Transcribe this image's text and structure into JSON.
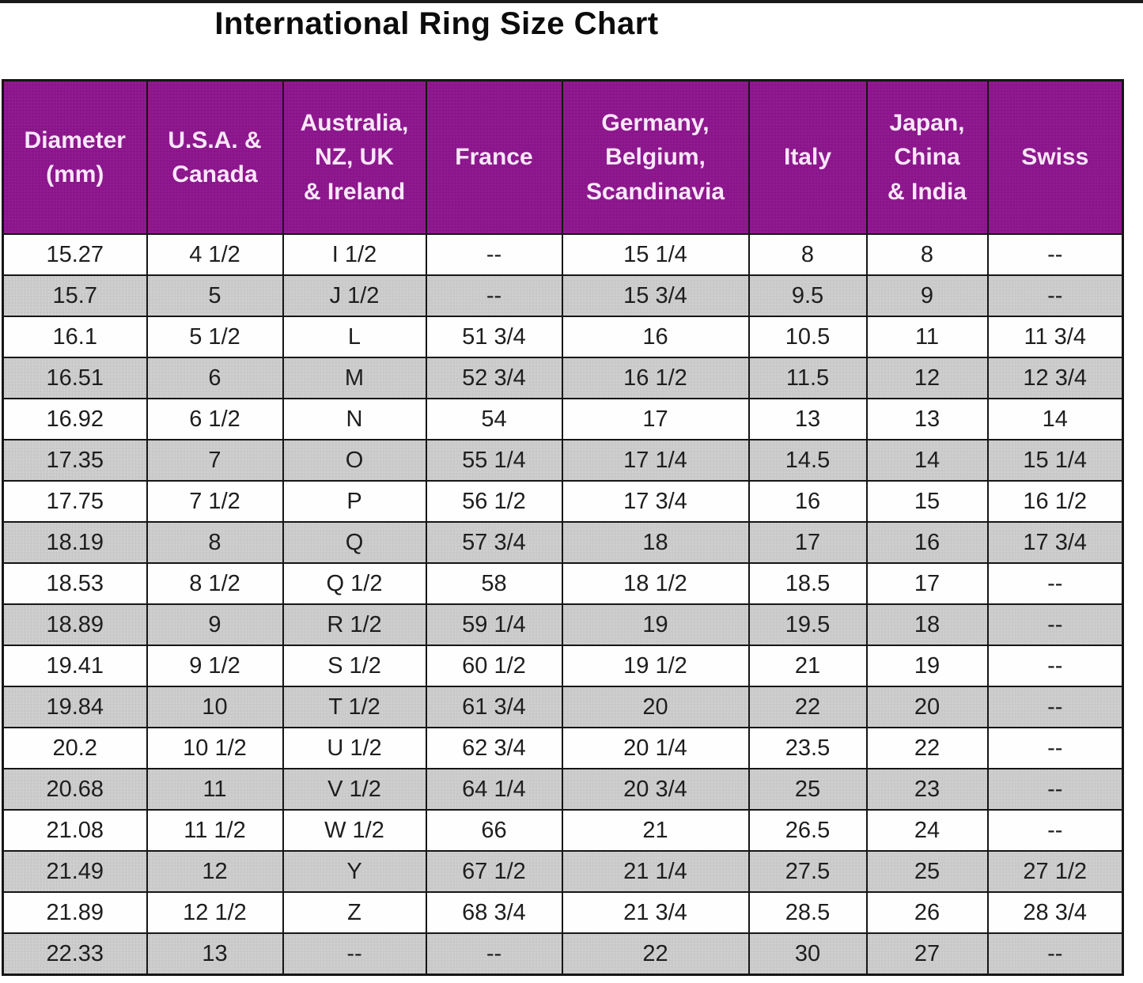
{
  "title": "International Ring Size Chart",
  "table": {
    "columns": [
      {
        "label": "Diameter\n(mm)"
      },
      {
        "label": "U.S.A. &\nCanada"
      },
      {
        "label": "Australia,\nNZ, UK\n& Ireland"
      },
      {
        "label": "France"
      },
      {
        "label": "Germany,\nBelgium,\nScandinavia"
      },
      {
        "label": "Italy"
      },
      {
        "label": "Japan,\nChina\n& India"
      },
      {
        "label": "Swiss"
      }
    ],
    "rows": [
      [
        "15.27",
        "4 1/2",
        "I 1/2",
        "--",
        "15 1/4",
        "8",
        "8",
        "--"
      ],
      [
        "15.7",
        "5",
        "J 1/2",
        "--",
        "15 3/4",
        "9.5",
        "9",
        "--"
      ],
      [
        "16.1",
        "5 1/2",
        "L",
        "51 3/4",
        "16",
        "10.5",
        "11",
        "11 3/4"
      ],
      [
        "16.51",
        "6",
        "M",
        "52 3/4",
        "16 1/2",
        "11.5",
        "12",
        "12 3/4"
      ],
      [
        "16.92",
        "6 1/2",
        "N",
        "54",
        "17",
        "13",
        "13",
        "14"
      ],
      [
        "17.35",
        "7",
        "O",
        "55 1/4",
        "17 1/4",
        "14.5",
        "14",
        "15 1/4"
      ],
      [
        "17.75",
        "7 1/2",
        "P",
        "56 1/2",
        "17 3/4",
        "16",
        "15",
        "16 1/2"
      ],
      [
        "18.19",
        "8",
        "Q",
        "57 3/4",
        "18",
        "17",
        "16",
        "17 3/4"
      ],
      [
        "18.53",
        "8 1/2",
        "Q 1/2",
        "58",
        "18 1/2",
        "18.5",
        "17",
        "--"
      ],
      [
        "18.89",
        "9",
        "R 1/2",
        "59 1/4",
        "19",
        "19.5",
        "18",
        "--"
      ],
      [
        "19.41",
        "9 1/2",
        "S 1/2",
        "60 1/2",
        "19 1/2",
        "21",
        "19",
        "--"
      ],
      [
        "19.84",
        "10",
        "T 1/2",
        "61 3/4",
        "20",
        "22",
        "20",
        "--"
      ],
      [
        "20.2",
        "10 1/2",
        "U 1/2",
        "62 3/4",
        "20 1/4",
        "23.5",
        "22",
        "--"
      ],
      [
        "20.68",
        "11",
        "V 1/2",
        "64 1/4",
        "20 3/4",
        "25",
        "23",
        "--"
      ],
      [
        "21.08",
        "11 1/2",
        "W 1/2",
        "66",
        "21",
        "26.5",
        "24",
        "--"
      ],
      [
        "21.49",
        "12",
        "Y",
        "67 1/2",
        "21 1/4",
        "27.5",
        "25",
        "27 1/2"
      ],
      [
        "21.89",
        "12 1/2",
        "Z",
        "68 3/4",
        "21 3/4",
        "28.5",
        "26",
        "28 3/4"
      ],
      [
        "22.33",
        "13",
        "--",
        "--",
        "22",
        "30",
        "27",
        "--"
      ]
    ]
  },
  "chart_data": {
    "type": "table",
    "title": "International Ring Size Chart",
    "columns": [
      "Diameter (mm)",
      "U.S.A. & Canada",
      "Australia, NZ, UK & Ireland",
      "France",
      "Germany, Belgium, Scandinavia",
      "Italy",
      "Japan, China & India",
      "Swiss"
    ],
    "rows": [
      [
        "15.27",
        "4 1/2",
        "I 1/2",
        "--",
        "15 1/4",
        "8",
        "8",
        "--"
      ],
      [
        "15.7",
        "5",
        "J 1/2",
        "--",
        "15 3/4",
        "9.5",
        "9",
        "--"
      ],
      [
        "16.1",
        "5 1/2",
        "L",
        "51 3/4",
        "16",
        "10.5",
        "11",
        "11 3/4"
      ],
      [
        "16.51",
        "6",
        "M",
        "52 3/4",
        "16 1/2",
        "11.5",
        "12",
        "12 3/4"
      ],
      [
        "16.92",
        "6 1/2",
        "N",
        "54",
        "17",
        "13",
        "13",
        "14"
      ],
      [
        "17.35",
        "7",
        "O",
        "55 1/4",
        "17 1/4",
        "14.5",
        "14",
        "15 1/4"
      ],
      [
        "17.75",
        "7 1/2",
        "P",
        "56 1/2",
        "17 3/4",
        "16",
        "15",
        "16 1/2"
      ],
      [
        "18.19",
        "8",
        "Q",
        "57 3/4",
        "18",
        "17",
        "16",
        "17 3/4"
      ],
      [
        "18.53",
        "8 1/2",
        "Q 1/2",
        "58",
        "18 1/2",
        "18.5",
        "17",
        "--"
      ],
      [
        "18.89",
        "9",
        "R 1/2",
        "59 1/4",
        "19",
        "19.5",
        "18",
        "--"
      ],
      [
        "19.41",
        "9 1/2",
        "S 1/2",
        "60 1/2",
        "19 1/2",
        "21",
        "19",
        "--"
      ],
      [
        "19.84",
        "10",
        "T 1/2",
        "61 3/4",
        "20",
        "22",
        "20",
        "--"
      ],
      [
        "20.2",
        "10 1/2",
        "U 1/2",
        "62 3/4",
        "20 1/4",
        "23.5",
        "22",
        "--"
      ],
      [
        "20.68",
        "11",
        "V 1/2",
        "64 1/4",
        "20 3/4",
        "25",
        "23",
        "--"
      ],
      [
        "21.08",
        "11 1/2",
        "W 1/2",
        "66",
        "21",
        "26.5",
        "24",
        "--"
      ],
      [
        "21.49",
        "12",
        "Y",
        "67 1/2",
        "21 1/4",
        "27.5",
        "25",
        "27 1/2"
      ],
      [
        "21.89",
        "12 1/2",
        "Z",
        "68 3/4",
        "21 3/4",
        "28.5",
        "26",
        "28 3/4"
      ],
      [
        "22.33",
        "13",
        "--",
        "--",
        "22",
        "30",
        "27",
        "--"
      ]
    ],
    "layout": {
      "header_position": "top",
      "striped": true,
      "grid": true
    }
  },
  "colors": {
    "header_bg": "#8d178d",
    "header_text": "#f9e7f9",
    "row_bg": "#fefefe",
    "row_alt_bg": "#cbcbcb",
    "border": "#161616",
    "title_text": "#0c0c0c",
    "top_line": "#1a1a1a"
  }
}
